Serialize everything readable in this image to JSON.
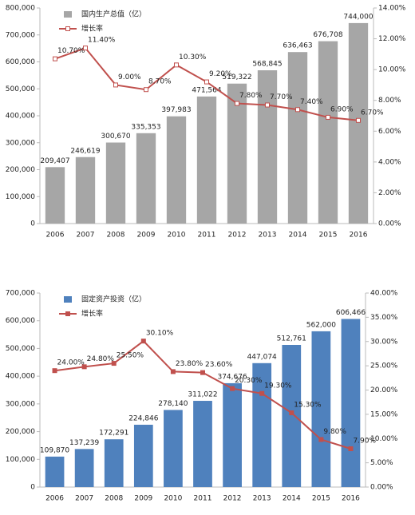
{
  "chart_data": [
    {
      "type": "bar",
      "categories": [
        "2006",
        "2007",
        "2008",
        "2009",
        "2010",
        "2011",
        "2012",
        "2013",
        "2014",
        "2015",
        "2016"
      ],
      "series": [
        {
          "name": "国内生产总值（亿）",
          "type": "bar",
          "color": "#a6a6a6",
          "values": [
            209407,
            246619,
            300670,
            335353,
            397983,
            471564,
            519322,
            568845,
            636463,
            676708,
            744000
          ],
          "value_labels": [
            "209,407",
            "246,619",
            "300,670",
            "335,353",
            "397,983",
            "471,564",
            "519,322",
            "568,845",
            "636,463",
            "676,708",
            "744,000"
          ]
        },
        {
          "name": "增长率",
          "type": "line",
          "axis": "y2",
          "color": "#c0504d",
          "marker": "hollow",
          "values": [
            10.7,
            11.4,
            9.0,
            8.7,
            10.3,
            9.2,
            7.8,
            7.7,
            7.4,
            6.9,
            6.7
          ],
          "value_labels": [
            "10.70%",
            "11.40%",
            "9.00%",
            "8.70%",
            "10.30%",
            "9.20%",
            "7.80%",
            "7.70%",
            "7.40%",
            "6.90%",
            "6.70%"
          ]
        }
      ],
      "ylim": [
        0,
        800000
      ],
      "yticks": [
        0,
        {
          "value": 100000,
          "label": "100,000"
        },
        {
          "value": 200000,
          "label": "200,000"
        },
        {
          "value": 300000,
          "label": "300,000"
        },
        {
          "value": 400000,
          "label": "400,000"
        },
        {
          "value": 500000,
          "label": "500,000"
        },
        {
          "value": 600000,
          "label": "600,000"
        },
        {
          "value": 700000,
          "label": "700,000"
        },
        {
          "value": 800000,
          "label": "800,000"
        }
      ],
      "y2lim": [
        0,
        14
      ],
      "y2ticks": [
        {
          "value": 0,
          "label": "0.00%"
        },
        {
          "value": 2,
          "label": "2.00%"
        },
        {
          "value": 4,
          "label": "4.00%"
        },
        {
          "value": 6,
          "label": "6.00%"
        },
        {
          "value": 8,
          "label": "8.00%"
        },
        {
          "value": 10,
          "label": "10.00%"
        },
        {
          "value": 12,
          "label": "12.00%"
        },
        {
          "value": 14,
          "label": "14.00%"
        }
      ],
      "legend": "upper left"
    },
    {
      "type": "bar",
      "categories": [
        "2006",
        "2007",
        "2008",
        "2009",
        "2010",
        "2011",
        "2012",
        "2013",
        "2014",
        "2015",
        "2016"
      ],
      "series": [
        {
          "name": "固定资产投资（亿）",
          "type": "bar",
          "color": "#4f81bd",
          "values": [
            109870,
            137239,
            172291,
            224846,
            278140,
            311022,
            374676,
            447074,
            512761,
            562000,
            606466
          ],
          "value_labels": [
            "109,870",
            "137,239",
            "172,291",
            "224,846",
            "278,140",
            "311,022",
            "374,676",
            "447,074",
            "512,761",
            "562,000",
            "606,466"
          ]
        },
        {
          "name": "增长率",
          "type": "line",
          "axis": "y2",
          "color": "#c0504d",
          "marker": "filled",
          "values": [
            24.0,
            24.8,
            25.5,
            30.1,
            23.8,
            23.6,
            20.3,
            19.3,
            15.3,
            9.8,
            7.9
          ],
          "value_labels": [
            "24.00%",
            "24.80%",
            "25.50%",
            "30.10%",
            "23.80%",
            "23.60%",
            "20.30%",
            "19.30%",
            "15.30%",
            "9.80%",
            "7.90%"
          ]
        }
      ],
      "ylim": [
        0,
        700000
      ],
      "yticks": [
        0,
        {
          "value": 100000,
          "label": "100,000"
        },
        {
          "value": 200000,
          "label": "200,000"
        },
        {
          "value": 300000,
          "label": "300,000"
        },
        {
          "value": 400000,
          "label": "400,000"
        },
        {
          "value": 500000,
          "label": "500,000"
        },
        {
          "value": 600000,
          "label": "600,000"
        },
        {
          "value": 700000,
          "label": "700,000"
        }
      ],
      "y2lim": [
        0,
        40
      ],
      "y2ticks": [
        {
          "value": 0,
          "label": "0.00%"
        },
        {
          "value": 5,
          "label": "5.00%"
        },
        {
          "value": 10,
          "label": "10.00%"
        },
        {
          "value": 15,
          "label": "15.00%"
        },
        {
          "value": 20,
          "label": "20.00%"
        },
        {
          "value": 25,
          "label": "25.00%"
        },
        {
          "value": 30,
          "label": "30.00%"
        },
        {
          "value": 35,
          "label": "35.00%"
        },
        {
          "value": 40,
          "label": "40.00%"
        }
      ],
      "legend": "upper left"
    }
  ]
}
